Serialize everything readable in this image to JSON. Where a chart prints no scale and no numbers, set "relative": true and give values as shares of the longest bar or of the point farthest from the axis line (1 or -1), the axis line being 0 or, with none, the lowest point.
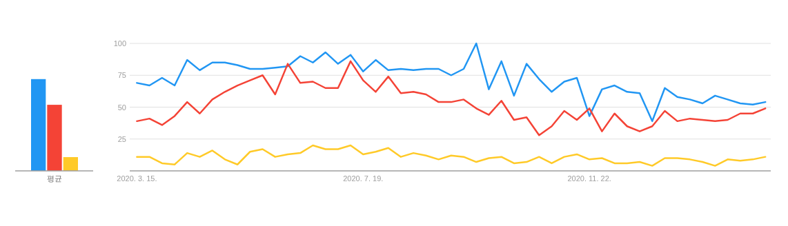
{
  "chart_data": [
    {
      "type": "bar",
      "categories": [
        "평균"
      ],
      "relative": true,
      "series": [
        {
          "color": "#2196f3",
          "values": [
            1
          ]
        },
        {
          "color": "#f44336",
          "values": [
            0.72
          ]
        },
        {
          "color": "#ffca28",
          "values": [
            0.15
          ]
        }
      ]
    },
    {
      "type": "line",
      "x": [
        "2020-03-15",
        "2020-03-22",
        "2020-03-29",
        "2020-04-05",
        "2020-04-12",
        "2020-04-19",
        "2020-04-26",
        "2020-05-03",
        "2020-05-10",
        "2020-05-17",
        "2020-05-24",
        "2020-05-31",
        "2020-06-07",
        "2020-06-14",
        "2020-06-21",
        "2020-06-28",
        "2020-07-05",
        "2020-07-12",
        "2020-07-19",
        "2020-07-26",
        "2020-08-02",
        "2020-08-09",
        "2020-08-16",
        "2020-08-23",
        "2020-08-30",
        "2020-09-06",
        "2020-09-13",
        "2020-09-20",
        "2020-09-27",
        "2020-10-04",
        "2020-10-11",
        "2020-10-18",
        "2020-10-25",
        "2020-11-01",
        "2020-11-08",
        "2020-11-15",
        "2020-11-22",
        "2020-11-29",
        "2020-12-06",
        "2020-12-13",
        "2020-12-20",
        "2020-12-27",
        "2021-01-03",
        "2021-01-10",
        "2021-01-17",
        "2021-01-24",
        "2021-01-31",
        "2021-02-07",
        "2021-02-14",
        "2021-02-21",
        "2021-02-28"
      ],
      "xlim": [
        "2020-03-11",
        "2021-03-03"
      ],
      "xticks": [
        {
          "value": "2020-03-15",
          "label": "2020. 3. 15."
        },
        {
          "value": "2020-07-19",
          "label": "2020. 7. 19."
        },
        {
          "value": "2020-11-22",
          "label": "2020. 11. 22."
        }
      ],
      "ylim": [
        0,
        100
      ],
      "yticks": [
        25,
        50,
        75,
        100
      ],
      "grid": "y",
      "series": [
        {
          "color": "#2196f3",
          "values": [
            69,
            67,
            73,
            67,
            87,
            79,
            85,
            85,
            83,
            80,
            80,
            81,
            82,
            90,
            85,
            93,
            84,
            91,
            78,
            87,
            79,
            80,
            79,
            80,
            80,
            75,
            80,
            100,
            64,
            86,
            59,
            84,
            72,
            62,
            70,
            73,
            43,
            64,
            67,
            62,
            61,
            39,
            65,
            58,
            56,
            53,
            59,
            56,
            53,
            52,
            54
          ]
        },
        {
          "color": "#f44336",
          "values": [
            39,
            41,
            36,
            43,
            54,
            45,
            56,
            62,
            67,
            71,
            75,
            60,
            84,
            69,
            70,
            65,
            65,
            86,
            71,
            62,
            74,
            61,
            62,
            60,
            54,
            54,
            56,
            49,
            44,
            55,
            40,
            42,
            28,
            35,
            47,
            40,
            49,
            31,
            45,
            35,
            31,
            35,
            47,
            39,
            41,
            40,
            39,
            40,
            45,
            45,
            49
          ]
        },
        {
          "color": "#ffca28",
          "values": [
            11,
            11,
            6,
            5,
            14,
            11,
            16,
            9,
            5,
            15,
            17,
            11,
            13,
            14,
            20,
            17,
            17,
            20,
            13,
            15,
            18,
            11,
            14,
            12,
            9,
            12,
            11,
            7,
            10,
            11,
            6,
            7,
            11,
            6,
            11,
            13,
            9,
            10,
            6,
            6,
            7,
            4,
            10,
            10,
            9,
            7,
            4,
            9,
            8,
            9,
            11
          ]
        }
      ]
    }
  ]
}
